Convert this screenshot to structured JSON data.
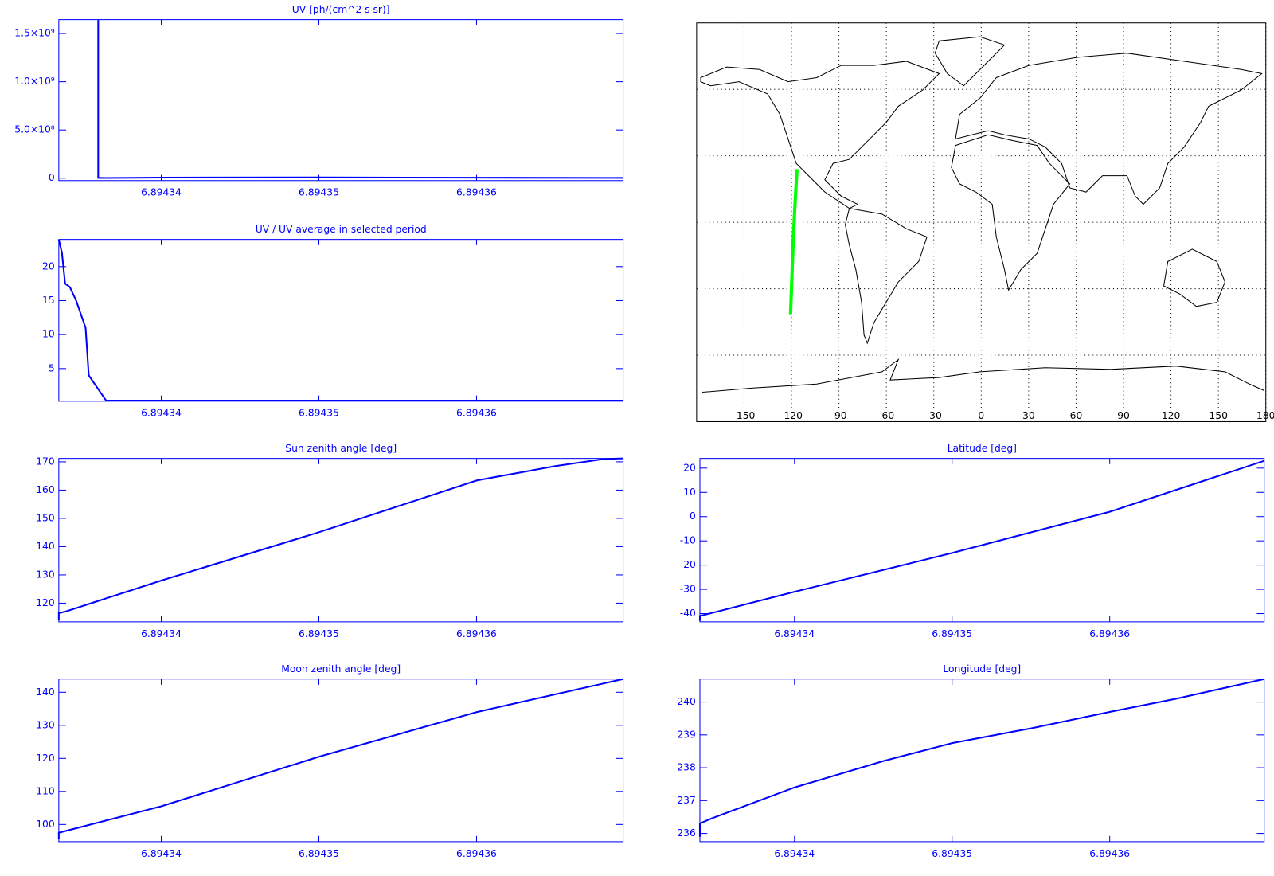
{
  "chart_data": [
    {
      "type": "line",
      "title": "UV [ph/(cm^2 s sr)]",
      "color": "#0000ff",
      "x": [
        6.894336,
        6.894336,
        6.8943365,
        6.89434,
        6.89435,
        6.89436,
        6.8943693
      ],
      "values": [
        1640000000,
        3000000,
        2000000,
        6000000,
        8000000,
        5000000,
        3000000
      ],
      "xlim": [
        6.8943335,
        6.8943693
      ],
      "xticks": [
        6.89434,
        6.89435,
        6.89436
      ],
      "ylim": [
        -25000000,
        1644000000
      ],
      "yticks": [
        0,
        {
          "value": 500000000,
          "label": "5.0×10⁸"
        },
        {
          "value": 1000000000,
          "label": "1.0×10⁹"
        },
        {
          "value": 1500000000,
          "label": "1.5×10⁹"
        }
      ]
    },
    {
      "type": "line",
      "title": "UV / UV average in selected period",
      "color": "#0000ff",
      "x": [
        6.8943335,
        6.8943337,
        6.8943339,
        6.8943342,
        6.8943346,
        6.8943349,
        6.8943352,
        6.8943354,
        6.8943365,
        6.89434,
        6.89435,
        6.89436,
        6.8943693
      ],
      "values": [
        24,
        22,
        17.5,
        17,
        15,
        13,
        11,
        4,
        0.3,
        0.3,
        0.3,
        0.3,
        0.3
      ],
      "xlim": [
        6.8943335,
        6.8943693
      ],
      "xticks": [
        6.89434,
        6.89435,
        6.89436
      ],
      "ylim": [
        0.2,
        24
      ],
      "yticks": [
        5,
        10,
        15,
        20
      ]
    },
    {
      "type": "line",
      "title": "Sun zenith angle [deg]",
      "color": "#0000ff",
      "x": [
        6.8943335,
        6.8943335,
        6.8943339,
        6.89434,
        6.89435,
        6.89436,
        6.894365,
        6.8943681,
        6.8943693
      ],
      "values": [
        114,
        116.5,
        117,
        128,
        145.1,
        163.4,
        168.5,
        171,
        171.2
      ],
      "xlim": [
        6.8943335,
        6.8943693
      ],
      "xticks": [
        6.89434,
        6.89435,
        6.89436
      ],
      "ylim": [
        113.4,
        171.2
      ],
      "yticks": [
        120,
        130,
        140,
        150,
        160,
        170
      ]
    },
    {
      "type": "line",
      "title": "Moon zenith angle [deg]",
      "color": "#0000ff",
      "x": [
        6.8943335,
        6.8943335,
        6.89434,
        6.89435,
        6.89436,
        6.8943693
      ],
      "values": [
        95.5,
        97.5,
        105.5,
        120.5,
        134,
        144
      ],
      "xlim": [
        6.8943335,
        6.8943693
      ],
      "xticks": [
        6.89434,
        6.89435,
        6.89436
      ],
      "ylim": [
        94.8,
        144
      ],
      "yticks": [
        100,
        110,
        120,
        130,
        140
      ]
    },
    {
      "type": "map",
      "color": "#00ff00",
      "grid": true,
      "x": [
        -120.6,
        -120,
        -119,
        -118,
        -117,
        -116.5
      ],
      "y": [
        -41.5,
        -30,
        -10,
        5,
        18,
        24
      ],
      "xlim": [
        -180,
        180
      ],
      "ylim": [
        -90,
        90
      ],
      "xticks": [
        -150,
        -120,
        -90,
        -60,
        -30,
        0,
        30,
        60,
        90,
        120,
        150,
        180
      ],
      "ygrid": [
        -60,
        -30,
        0,
        30,
        60
      ]
    },
    {
      "type": "line",
      "title": "Latitude [deg]",
      "color": "#0000ff",
      "x": [
        6.894334,
        6.894334,
        6.89434,
        6.89435,
        6.89436,
        6.8943698
      ],
      "values": [
        -43,
        -41,
        -31,
        -15,
        2,
        23
      ],
      "xlim": [
        6.894334,
        6.8943698
      ],
      "xticks": [
        6.89434,
        6.89435,
        6.89436
      ],
      "ylim": [
        -43.4,
        24
      ],
      "yticks": [
        -40,
        -30,
        -20,
        -10,
        0,
        10,
        20
      ]
    },
    {
      "type": "line",
      "title": "Longitude [deg]",
      "color": "#0000ff",
      "x": [
        6.894334,
        6.894334,
        6.8943347,
        6.89434,
        6.8943456,
        6.89435,
        6.894355,
        6.89436,
        6.8943642,
        6.8943698
      ],
      "values": [
        235.9,
        236.3,
        236.45,
        237.4,
        238.2,
        238.75,
        239.2,
        239.7,
        240.1,
        240.7
      ],
      "xlim": [
        6.894334,
        6.8943698
      ],
      "xticks": [
        6.89434,
        6.89435,
        6.89436
      ],
      "ylim": [
        235.75,
        240.7
      ],
      "yticks": [
        236,
        237,
        238,
        239,
        240
      ]
    }
  ]
}
